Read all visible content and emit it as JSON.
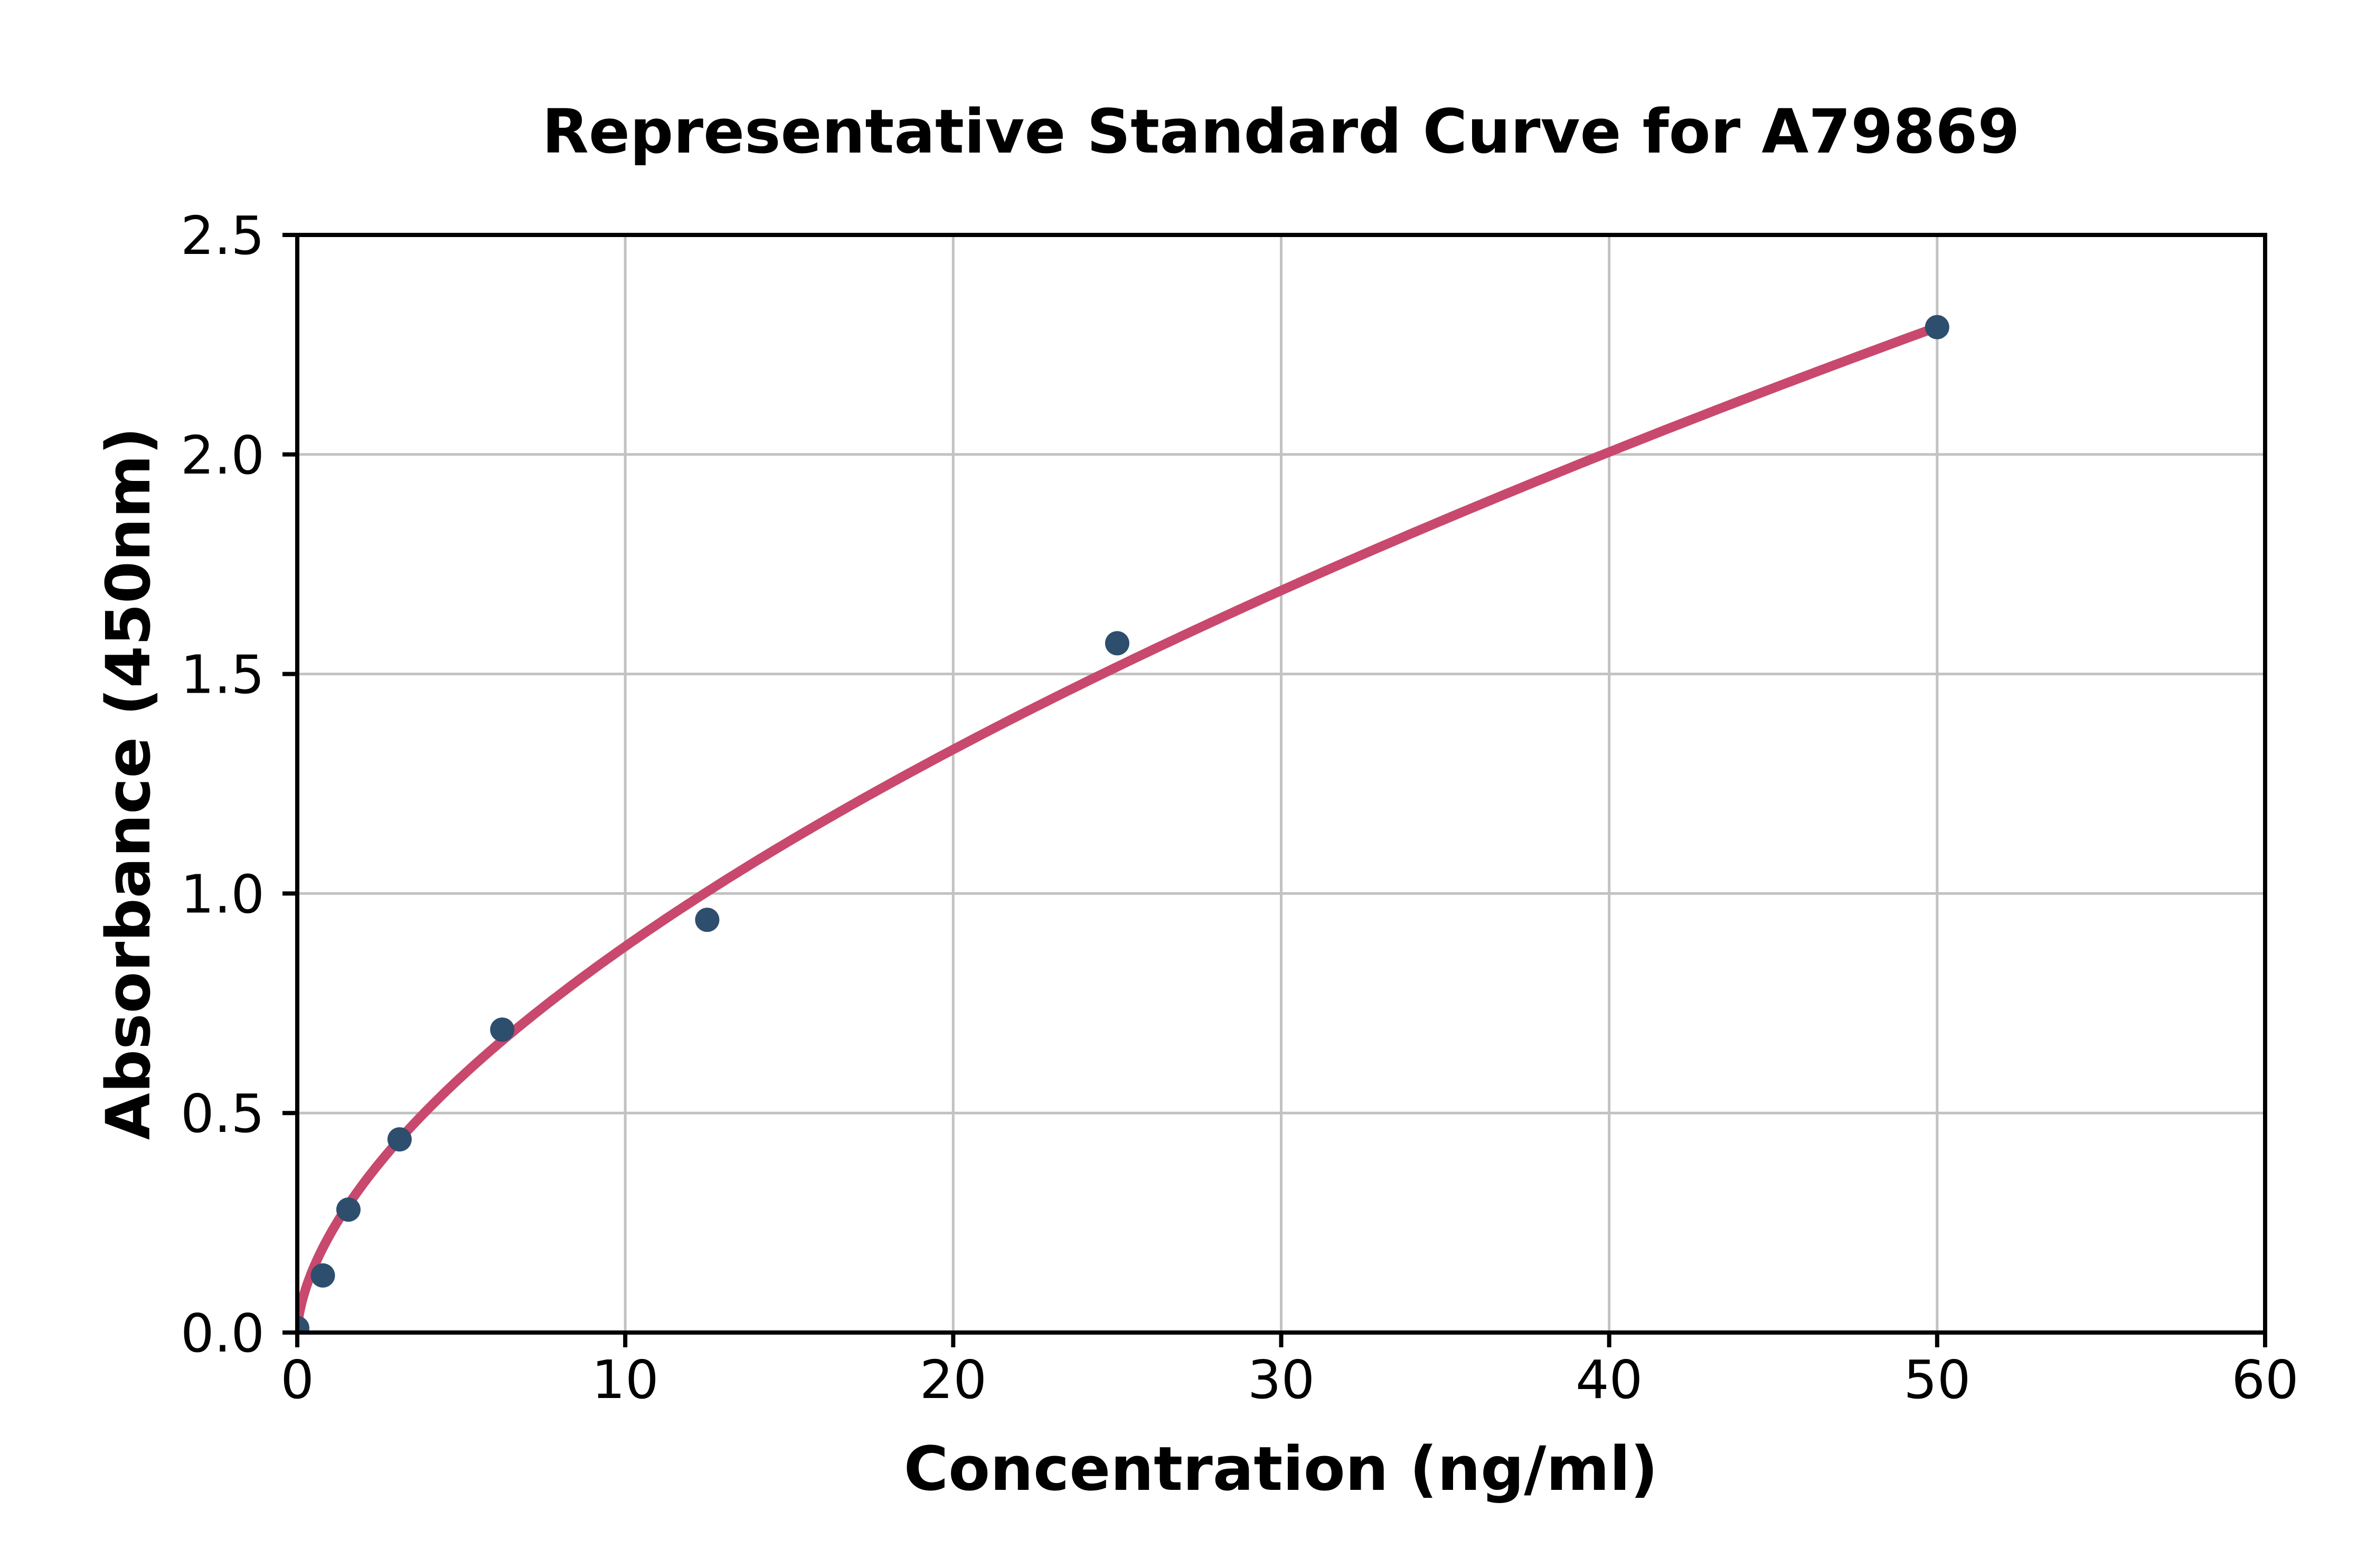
{
  "page": {
    "background": "#ffffff"
  },
  "chart_data": {
    "type": "scatter",
    "title": "Representative Standard Curve for A79869",
    "xlabel": "Concentration (ng/ml)",
    "ylabel": "Absorbance (450nm)",
    "xlim": [
      0,
      60
    ],
    "ylim": [
      0,
      2.5
    ],
    "xticks": [
      0,
      10,
      20,
      30,
      40,
      50,
      60
    ],
    "xtick_labels": [
      "0",
      "10",
      "20",
      "30",
      "40",
      "50",
      "60"
    ],
    "yticks": [
      0,
      0.5,
      1.0,
      1.5,
      2.0,
      2.5
    ],
    "ytick_labels": [
      "0.0",
      "0.5",
      "1.0",
      "1.5",
      "2.0",
      "2.5"
    ],
    "grid": true,
    "legend_position": "none",
    "series": [
      {
        "name": "standard-points",
        "type": "scatter",
        "points": [
          {
            "x": 0,
            "y": 0.01
          },
          {
            "x": 0.78,
            "y": 0.13
          },
          {
            "x": 1.56,
            "y": 0.28
          },
          {
            "x": 3.12,
            "y": 0.44
          },
          {
            "x": 6.25,
            "y": 0.69
          },
          {
            "x": 12.5,
            "y": 0.94
          },
          {
            "x": 25,
            "y": 1.57
          },
          {
            "x": 50,
            "y": 2.29
          }
        ],
        "marker_color": "#2e4e6e",
        "marker_radius": 23
      },
      {
        "name": "fit-curve",
        "type": "line",
        "fit": {
          "model": "power",
          "a": 0.2236,
          "b": 0.5947,
          "x_start": 0.01,
          "x_end": 50
        },
        "line_color": "#c8496d",
        "line_width": 18
      }
    ],
    "colors": {
      "grid": "#c2c2c2",
      "axis": "#000000",
      "text": "#000000",
      "background": "#ffffff"
    }
  }
}
